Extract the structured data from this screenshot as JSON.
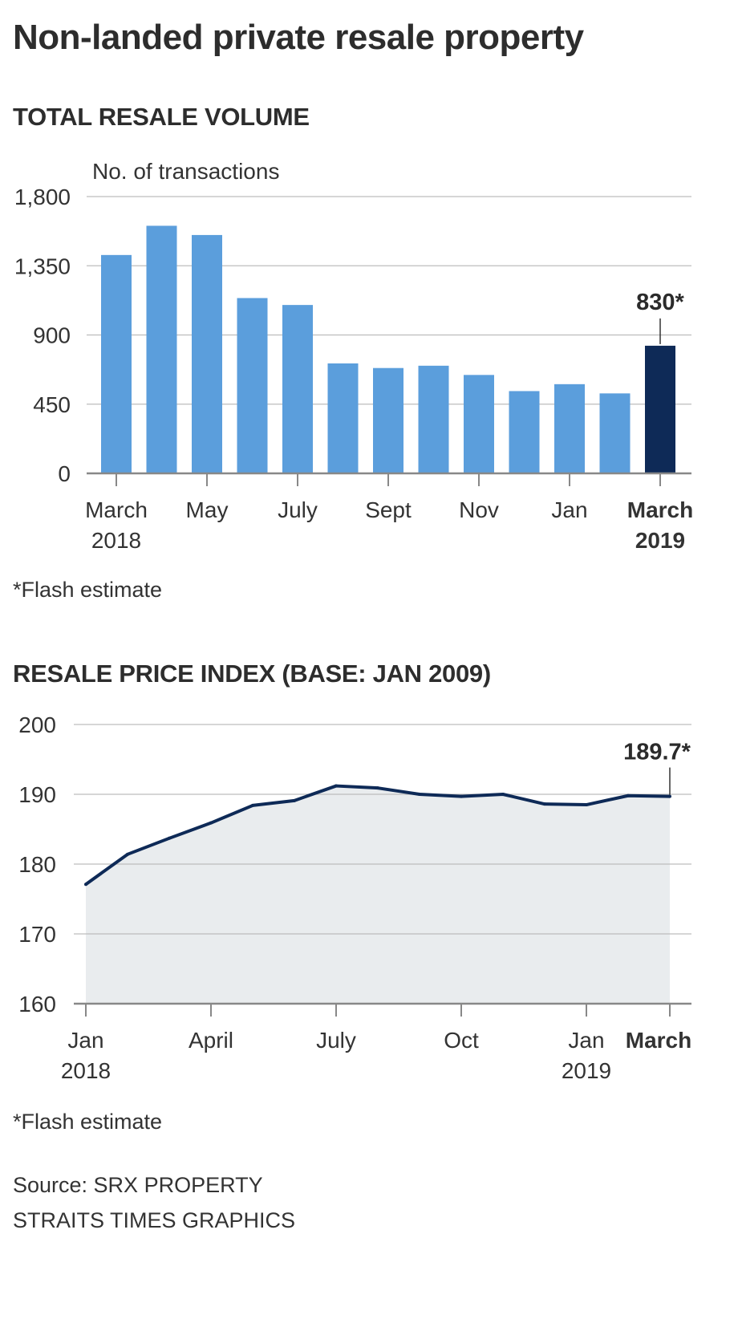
{
  "title": "Non-landed private resale property",
  "colors": {
    "bar": "#5b9edc",
    "bar_highlight": "#0e2a57",
    "line": "#0e2a57",
    "area": "#e9ecee",
    "grid": "#bdbdbd"
  },
  "chart_data": [
    {
      "type": "bar",
      "title": "TOTAL RESALE VOLUME",
      "ylabel": "No. of transactions",
      "ylim": [
        0,
        1800
      ],
      "yticks": [
        "0",
        "450",
        "900",
        "1,350",
        "1,800"
      ],
      "categories": [
        "Mar 2018",
        "Apr 2018",
        "May 2018",
        "Jun 2018",
        "Jul 2018",
        "Aug 2018",
        "Sep 2018",
        "Oct 2018",
        "Nov 2018",
        "Dec 2018",
        "Jan 2019",
        "Feb 2019",
        "Mar 2019"
      ],
      "values": [
        1420,
        1610,
        1550,
        1140,
        1095,
        715,
        685,
        700,
        640,
        535,
        580,
        520,
        830
      ],
      "highlight_index": 12,
      "xtick_labels": [
        {
          "index": 0,
          "lines": [
            "March",
            "2018"
          ],
          "bold": false
        },
        {
          "index": 2,
          "lines": [
            "May"
          ],
          "bold": false
        },
        {
          "index": 4,
          "lines": [
            "July"
          ],
          "bold": false
        },
        {
          "index": 6,
          "lines": [
            "Sept"
          ],
          "bold": false
        },
        {
          "index": 8,
          "lines": [
            "Nov"
          ],
          "bold": false
        },
        {
          "index": 10,
          "lines": [
            "Jan"
          ],
          "bold": false
        },
        {
          "index": 12,
          "lines": [
            "March",
            "2019"
          ],
          "bold": true
        }
      ],
      "annotation": "830*",
      "footnote": "*Flash estimate"
    },
    {
      "type": "area",
      "title": "RESALE PRICE INDEX (BASE: JAN 2009)",
      "ylim": [
        160,
        200
      ],
      "yticks": [
        "160",
        "170",
        "180",
        "190",
        "200"
      ],
      "x": [
        "Jan 2018",
        "Feb 2018",
        "Mar 2018",
        "Apr 2018",
        "May 2018",
        "Jun 2018",
        "Jul 2018",
        "Aug 2018",
        "Sep 2018",
        "Oct 2018",
        "Nov 2018",
        "Dec 2018",
        "Jan 2019",
        "Feb 2019",
        "Mar 2019"
      ],
      "values": [
        177.1,
        181.4,
        183.7,
        185.9,
        188.4,
        189.1,
        191.2,
        190.9,
        190.0,
        189.7,
        190.0,
        188.6,
        188.5,
        189.8,
        189.7
      ],
      "xtick_labels": [
        {
          "index": 0,
          "lines": [
            "Jan",
            "2018"
          ],
          "bold": false
        },
        {
          "index": 3,
          "lines": [
            "April"
          ],
          "bold": false
        },
        {
          "index": 6,
          "lines": [
            "July"
          ],
          "bold": false
        },
        {
          "index": 9,
          "lines": [
            "Oct"
          ],
          "bold": false
        },
        {
          "index": 12,
          "lines": [
            "Jan",
            "2019"
          ],
          "bold": false
        },
        {
          "index": 14,
          "lines": [
            "March"
          ],
          "bold": true
        }
      ],
      "annotation": "189.7*",
      "footnote": "*Flash estimate"
    }
  ],
  "source": "Source: SRX PROPERTY",
  "credit": "STRAITS TIMES GRAPHICS"
}
